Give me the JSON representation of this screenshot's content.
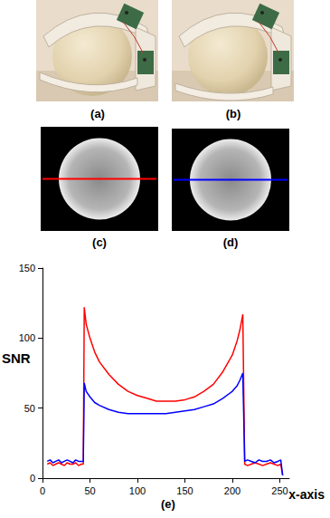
{
  "panels": {
    "a": {
      "label": "(a)"
    },
    "b": {
      "label": "(b)"
    },
    "c": {
      "label": "(c)"
    },
    "d": {
      "label": "(d)"
    }
  },
  "chart_data": {
    "type": "line",
    "title": "(e)",
    "x_label": "x-axis",
    "y_label": "SNR",
    "x": [
      5,
      8,
      11,
      14,
      17,
      20,
      23,
      26,
      29,
      32,
      35,
      38,
      41,
      43,
      44,
      46,
      50,
      55,
      60,
      70,
      80,
      90,
      100,
      110,
      120,
      130,
      140,
      150,
      160,
      170,
      180,
      190,
      200,
      205,
      208,
      211,
      213,
      216,
      220,
      224,
      228,
      232,
      236,
      240,
      244,
      248,
      251,
      253
    ],
    "series": [
      {
        "color": "#ff0000",
        "values": [
          10,
          11,
          9,
          10,
          11,
          10,
          9,
          11,
          10,
          10,
          11,
          9,
          10,
          10,
          122,
          110,
          100,
          90,
          83,
          74,
          67,
          62,
          59,
          57,
          55,
          55,
          55,
          56,
          58,
          62,
          67,
          76,
          88,
          98,
          106,
          117,
          10,
          9,
          10,
          11,
          10,
          9,
          10,
          11,
          10,
          9,
          10,
          2
        ]
      },
      {
        "color": "#0000ff",
        "values": [
          12,
          13,
          11,
          12,
          13,
          11,
          12,
          13,
          12,
          11,
          13,
          12,
          12,
          12,
          68,
          62,
          58,
          54,
          52,
          49,
          47,
          46,
          46,
          46,
          46,
          46,
          47,
          48,
          49,
          51,
          53,
          57,
          62,
          66,
          70,
          75,
          12,
          13,
          12,
          11,
          13,
          12,
          12,
          13,
          11,
          12,
          13,
          2
        ]
      }
    ],
    "xlim": [
      0,
      260
    ],
    "xticks": [
      0,
      50,
      100,
      150,
      200,
      250
    ],
    "ylim": [
      0,
      150
    ],
    "yticks": [
      0,
      50,
      100,
      150
    ],
    "grid": false
  }
}
